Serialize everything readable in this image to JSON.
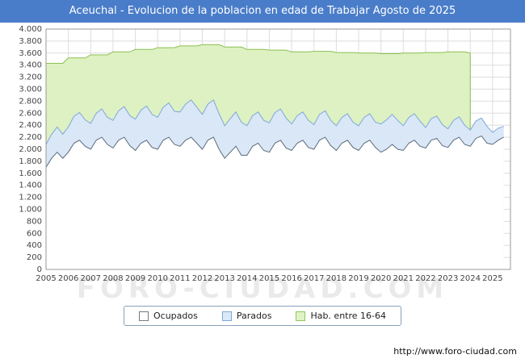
{
  "title": "Aceuchal - Evolucion de la poblacion en edad de Trabajar Agosto de 2025",
  "watermark": "FORO-CIUDAD.COM",
  "footer": {
    "url": "http://www.foro-ciudad.com"
  },
  "legend": [
    {
      "label": "Ocupados",
      "fill": "#ffffff",
      "stroke": "#7a7a7a"
    },
    {
      "label": "Parados",
      "fill": "#dbe9f9",
      "stroke": "#7fa8d9"
    },
    {
      "label": "Hab. entre 16-64",
      "fill": "#dff3c5",
      "stroke": "#92c55e"
    }
  ],
  "chart_data": {
    "type": "area",
    "title": "Aceuchal - Evolucion de la poblacion en edad de Trabajar Agosto de 2025",
    "xlabel": "",
    "ylabel": "",
    "ylim": [
      0,
      4000
    ],
    "ytick_step": 200,
    "grid": true,
    "legend_position": "bottom",
    "stacking": "Ocupados area from 0; Parados stacked on Ocupados; Hab. entre 16-64 drawn as total population area behind both (ends mid-2024)",
    "xticks": [
      2005,
      2006,
      2007,
      2008,
      2009,
      2010,
      2011,
      2012,
      2013,
      2014,
      2015,
      2016,
      2017,
      2018,
      2019,
      2020,
      2021,
      2022,
      2023,
      2024,
      2025
    ],
    "x": [
      2005,
      2005.25,
      2005.5,
      2005.75,
      2006,
      2006.25,
      2006.5,
      2006.75,
      2007,
      2007.25,
      2007.5,
      2007.75,
      2008,
      2008.25,
      2008.5,
      2008.75,
      2009,
      2009.25,
      2009.5,
      2009.75,
      2010,
      2010.25,
      2010.5,
      2010.75,
      2011,
      2011.25,
      2011.5,
      2011.75,
      2012,
      2012.25,
      2012.5,
      2012.75,
      2013,
      2013.25,
      2013.5,
      2013.75,
      2014,
      2014.25,
      2014.5,
      2014.75,
      2015,
      2015.25,
      2015.5,
      2015.75,
      2016,
      2016.25,
      2016.5,
      2016.75,
      2017,
      2017.25,
      2017.5,
      2017.75,
      2018,
      2018.25,
      2018.5,
      2018.75,
      2019,
      2019.25,
      2019.5,
      2019.75,
      2020,
      2020.25,
      2020.5,
      2020.75,
      2021,
      2021.25,
      2021.5,
      2021.75,
      2022,
      2022.25,
      2022.5,
      2022.75,
      2023,
      2023.25,
      2023.5,
      2023.75,
      2024,
      2024.25,
      2024.5,
      2024.75,
      2025,
      2025.25,
      2025.5
    ],
    "series": [
      {
        "name": "Ocupados",
        "values": [
          1700,
          1850,
          1950,
          1850,
          1950,
          2100,
          2150,
          2050,
          2000,
          2150,
          2200,
          2080,
          2020,
          2150,
          2200,
          2060,
          1980,
          2100,
          2150,
          2030,
          2000,
          2150,
          2200,
          2080,
          2050,
          2150,
          2200,
          2100,
          2000,
          2150,
          2200,
          2000,
          1850,
          1950,
          2050,
          1900,
          1900,
          2050,
          2100,
          1980,
          1950,
          2100,
          2150,
          2020,
          1980,
          2100,
          2150,
          2030,
          2000,
          2150,
          2200,
          2060,
          1980,
          2100,
          2150,
          2030,
          1980,
          2100,
          2150,
          2030,
          1950,
          2000,
          2080,
          2000,
          1980,
          2100,
          2150,
          2050,
          2020,
          2150,
          2180,
          2060,
          2030,
          2150,
          2200,
          2080,
          2050,
          2180,
          2220,
          2100,
          2080,
          2150,
          2200
        ]
      },
      {
        "name": "Parados",
        "values": [
          380,
          400,
          420,
          400,
          420,
          450,
          460,
          440,
          430,
          450,
          470,
          450,
          460,
          490,
          510,
          500,
          520,
          550,
          570,
          550,
          530,
          550,
          570,
          550,
          570,
          600,
          620,
          600,
          580,
          600,
          620,
          590,
          540,
          560,
          570,
          550,
          490,
          510,
          520,
          500,
          490,
          510,
          520,
          500,
          440,
          460,
          470,
          450,
          410,
          430,
          440,
          420,
          410,
          430,
          440,
          420,
          410,
          430,
          440,
          420,
          470,
          490,
          500,
          480,
          410,
          430,
          440,
          420,
          340,
          360,
          370,
          350,
          310,
          330,
          340,
          320,
          270,
          290,
          300,
          280,
          200,
          200,
          180
        ]
      },
      {
        "name": "Hab. entre 16-64",
        "values": [
          3430,
          3430,
          3430,
          3430,
          3520,
          3520,
          3520,
          3520,
          3570,
          3570,
          3570,
          3570,
          3620,
          3620,
          3620,
          3620,
          3660,
          3660,
          3660,
          3660,
          3690,
          3690,
          3690,
          3690,
          3720,
          3720,
          3720,
          3720,
          3740,
          3740,
          3740,
          3740,
          3700,
          3700,
          3700,
          3700,
          3660,
          3660,
          3660,
          3660,
          3650,
          3650,
          3650,
          3650,
          3620,
          3620,
          3620,
          3620,
          3630,
          3630,
          3630,
          3630,
          3610,
          3610,
          3610,
          3610,
          3600,
          3600,
          3600,
          3600,
          3590,
          3590,
          3590,
          3590,
          3600,
          3600,
          3600,
          3600,
          3610,
          3610,
          3610,
          3610,
          3620,
          3620,
          3620,
          3620,
          3600,
          null,
          null,
          null,
          null,
          null,
          null
        ]
      }
    ],
    "colors": {
      "ocupados_fill": "#ffffff",
      "ocupados_line": "#5a6b7a",
      "parados_fill": "#d9e7f7",
      "parados_line": "#7fa8d9",
      "hab_fill": "#ddf1c2",
      "hab_line": "#8cc051",
      "grid": "#dddddd",
      "border": "#999999"
    }
  }
}
